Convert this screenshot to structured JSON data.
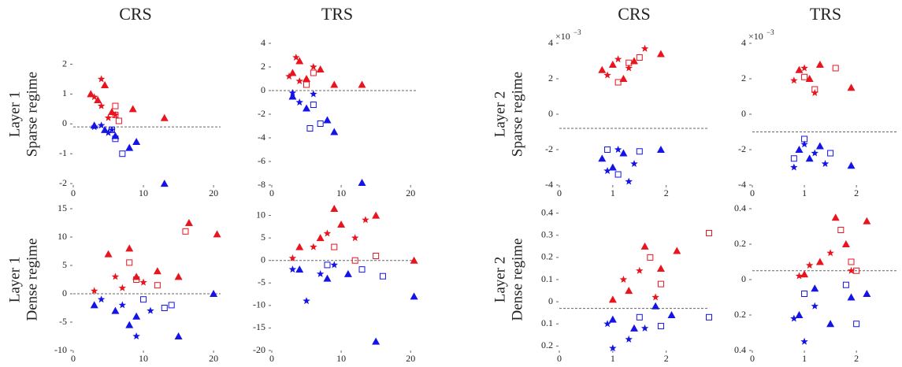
{
  "column_titles": [
    "CRS",
    "TRS",
    "CRS",
    "TRS"
  ],
  "row_labels": [
    [
      "Layer 1",
      "Sparse regime"
    ],
    [
      "Layer 1",
      "Dense regime"
    ],
    [
      "Layer 2",
      "Sparse regime"
    ],
    [
      "Layer 2",
      "Dense regime"
    ]
  ],
  "chart_data": [
    {
      "type": "scatter",
      "xlim": [
        0,
        21
      ],
      "xticks": [
        0,
        10,
        20
      ],
      "ylim": [
        -2.05,
        2.7
      ],
      "yticks": [
        2,
        1,
        0,
        -1,
        -2
      ],
      "threshold": -0.1,
      "series": [
        {
          "color": "#e8141e",
          "marker": "triangle",
          "x": [
            2.5,
            3.5,
            4.5,
            5.5,
            8.5,
            13
          ],
          "values": [
            1,
            0.8,
            1.3,
            0.4,
            0.5,
            0.2
          ]
        },
        {
          "color": "#e8141e",
          "marker": "star",
          "x": [
            3,
            4,
            4,
            5,
            6
          ],
          "values": [
            0.9,
            1.5,
            0.6,
            0.2,
            0.3
          ]
        },
        {
          "color": "#e8141e",
          "marker": "square",
          "x": [
            6,
            6.5,
            6
          ],
          "values": [
            0.3,
            0.1,
            0.6
          ]
        },
        {
          "color": "#1414e6",
          "marker": "triangle",
          "x": [
            3,
            4.5,
            6,
            8,
            9,
            13
          ],
          "values": [
            -0.05,
            -0.2,
            -0.4,
            -0.8,
            -0.6,
            -2
          ]
        },
        {
          "color": "#1414e6",
          "marker": "star",
          "x": [
            3,
            4,
            5,
            5.5
          ],
          "values": [
            -0.1,
            -0.05,
            -0.3,
            -0.2
          ]
        },
        {
          "color": "#1414e6",
          "marker": "square",
          "x": [
            6,
            7,
            5.5
          ],
          "values": [
            -0.5,
            -1,
            -0.2
          ]
        }
      ]
    },
    {
      "type": "scatter",
      "xlim": [
        0,
        21
      ],
      "xticks": [
        0,
        10,
        20
      ],
      "ylim": [
        -8,
        4
      ],
      "yticks": [
        4,
        2,
        0,
        -2,
        -4,
        -6,
        -8
      ],
      "threshold": 0,
      "series": [
        {
          "color": "#e8141e",
          "marker": "triangle",
          "x": [
            3,
            4,
            5,
            7,
            9,
            13
          ],
          "values": [
            1.5,
            2.5,
            1,
            1.8,
            0.5,
            0.5
          ]
        },
        {
          "color": "#e8141e",
          "marker": "star",
          "x": [
            3.5,
            4,
            6,
            2.5
          ],
          "values": [
            2.8,
            0.8,
            2,
            1.2
          ]
        },
        {
          "color": "#e8141e",
          "marker": "square",
          "x": [
            5,
            6
          ],
          "values": [
            0.5,
            1.5
          ]
        },
        {
          "color": "#1414e6",
          "marker": "triangle",
          "x": [
            3,
            5,
            8,
            9,
            13
          ],
          "values": [
            -0.5,
            -1.5,
            -2.5,
            -3.5,
            -7.8
          ]
        },
        {
          "color": "#1414e6",
          "marker": "star",
          "x": [
            3,
            4,
            6
          ],
          "values": [
            -0.2,
            -1,
            -0.3
          ]
        },
        {
          "color": "#1414e6",
          "marker": "square",
          "x": [
            5.5,
            7,
            6
          ],
          "values": [
            -3.2,
            -2.8,
            -1.2
          ]
        }
      ]
    },
    {
      "type": "scatter",
      "xlim": [
        0,
        2.8
      ],
      "xticks": [
        0,
        1,
        2
      ],
      "ylim": [
        -4,
        4
      ],
      "yticks": [
        4,
        2,
        0,
        -2,
        -4
      ],
      "threshold": -0.8,
      "y_multiplier": "×10",
      "y_multiplier_exp": "−3",
      "series": [
        {
          "color": "#e8141e",
          "marker": "triangle",
          "x": [
            0.8,
            1,
            1.2,
            1.4,
            1.9
          ],
          "values": [
            2.5,
            2.8,
            2,
            3,
            3.4
          ]
        },
        {
          "color": "#e8141e",
          "marker": "star",
          "x": [
            0.9,
            1.1,
            1.3,
            1.6
          ],
          "values": [
            2.2,
            3.1,
            2.6,
            3.7
          ]
        },
        {
          "color": "#e8141e",
          "marker": "square",
          "x": [
            1.1,
            1.5,
            1.3
          ],
          "values": [
            1.8,
            3.2,
            2.9
          ]
        },
        {
          "color": "#1414e6",
          "marker": "triangle",
          "x": [
            0.8,
            1,
            1.2,
            1.9
          ],
          "values": [
            -2.5,
            -3,
            -2.2,
            -2
          ]
        },
        {
          "color": "#1414e6",
          "marker": "star",
          "x": [
            0.9,
            1.1,
            1.3,
            1.4
          ],
          "values": [
            -3.2,
            -2,
            -3.8,
            -2.8
          ]
        },
        {
          "color": "#1414e6",
          "marker": "square",
          "x": [
            0.9,
            1.1,
            1.5
          ],
          "values": [
            -2,
            -3.4,
            -2.1
          ]
        }
      ]
    },
    {
      "type": "scatter",
      "xlim": [
        0,
        2.8
      ],
      "xticks": [
        0,
        1,
        2
      ],
      "ylim": [
        -4,
        4
      ],
      "yticks": [
        4,
        2,
        0,
        -2,
        -4
      ],
      "threshold": -1,
      "y_multiplier": "×10",
      "y_multiplier_exp": "−3",
      "series": [
        {
          "color": "#e8141e",
          "marker": "triangle",
          "x": [
            0.9,
            1.1,
            1.3,
            1.9
          ],
          "values": [
            2.5,
            2,
            2.8,
            1.5
          ]
        },
        {
          "color": "#e8141e",
          "marker": "star",
          "x": [
            0.8,
            1,
            1.2
          ],
          "values": [
            1.9,
            2.6,
            1.2
          ]
        },
        {
          "color": "#e8141e",
          "marker": "square",
          "x": [
            1.2,
            1.6,
            1
          ],
          "values": [
            1.4,
            2.6,
            2.1
          ]
        },
        {
          "color": "#1414e6",
          "marker": "triangle",
          "x": [
            0.9,
            1.1,
            1.3,
            1.9
          ],
          "values": [
            -2,
            -2.5,
            -1.8,
            -2.9
          ]
        },
        {
          "color": "#1414e6",
          "marker": "star",
          "x": [
            0.8,
            1,
            1.2,
            1.4
          ],
          "values": [
            -3,
            -1.7,
            -2.2,
            -2.8
          ]
        },
        {
          "color": "#1414e6",
          "marker": "square",
          "x": [
            1,
            1.5,
            0.8
          ],
          "values": [
            -1.4,
            -2.2,
            -2.5
          ]
        }
      ]
    },
    {
      "type": "scatter",
      "xlim": [
        0,
        21
      ],
      "xticks": [
        0,
        10,
        20
      ],
      "ylim": [
        -10,
        15
      ],
      "yticks": [
        15,
        10,
        5,
        0,
        -5,
        -10
      ],
      "threshold": 0,
      "series": [
        {
          "color": "#e8141e",
          "marker": "triangle",
          "x": [
            5,
            8,
            9,
            12,
            15,
            16.5,
            20.5
          ],
          "values": [
            7,
            8,
            3,
            4,
            3,
            12.5,
            10.5
          ]
        },
        {
          "color": "#e8141e",
          "marker": "star",
          "x": [
            3,
            6,
            7,
            10
          ],
          "values": [
            0.5,
            3,
            1,
            2
          ]
        },
        {
          "color": "#e8141e",
          "marker": "square",
          "x": [
            8,
            9,
            12,
            16
          ],
          "values": [
            5.5,
            2.5,
            1.5,
            11
          ]
        },
        {
          "color": "#1414e6",
          "marker": "triangle",
          "x": [
            3,
            6,
            8,
            9,
            15,
            20
          ],
          "values": [
            -2,
            -3,
            -5.5,
            -4,
            -7.5,
            0
          ]
        },
        {
          "color": "#1414e6",
          "marker": "star",
          "x": [
            4,
            7,
            9,
            11
          ],
          "values": [
            -1,
            -2,
            -7.5,
            -3
          ]
        },
        {
          "color": "#1414e6",
          "marker": "square",
          "x": [
            10,
            13,
            14
          ],
          "values": [
            -1,
            -2.5,
            -2
          ]
        }
      ]
    },
    {
      "type": "scatter",
      "xlim": [
        0,
        21
      ],
      "xticks": [
        0,
        10,
        20
      ],
      "ylim": [
        -20,
        11.5
      ],
      "yticks": [
        10,
        5,
        0,
        -5,
        -10,
        -15,
        -20
      ],
      "threshold": 0,
      "series": [
        {
          "color": "#e8141e",
          "marker": "triangle",
          "x": [
            4,
            7,
            9,
            10,
            15,
            20.5
          ],
          "values": [
            3,
            5,
            11.5,
            8,
            10,
            0
          ]
        },
        {
          "color": "#e8141e",
          "marker": "star",
          "x": [
            3,
            6,
            8,
            12,
            13.5
          ],
          "values": [
            0.5,
            3,
            6,
            5,
            9
          ]
        },
        {
          "color": "#e8141e",
          "marker": "square",
          "x": [
            9,
            12,
            15
          ],
          "values": [
            3,
            0,
            1
          ]
        },
        {
          "color": "#1414e6",
          "marker": "triangle",
          "x": [
            4,
            8,
            11,
            15,
            20.5
          ],
          "values": [
            -2,
            -4,
            -3,
            -18,
            -8
          ]
        },
        {
          "color": "#1414e6",
          "marker": "star",
          "x": [
            3,
            5,
            7,
            9
          ],
          "values": [
            -2,
            -9,
            -3,
            -1
          ]
        },
        {
          "color": "#1414e6",
          "marker": "square",
          "x": [
            8,
            13,
            16
          ],
          "values": [
            -1,
            -2,
            -3.5
          ]
        }
      ]
    },
    {
      "type": "scatter",
      "xlim": [
        0,
        2.8
      ],
      "xticks": [
        0,
        1,
        2
      ],
      "ylim": [
        -0.22,
        0.42
      ],
      "yticks": [
        0.4,
        0.3,
        0.2,
        0.1,
        0,
        {
          "value": -0.1,
          "label": "0.1"
        },
        {
          "value": -0.2,
          "label": "0.2"
        }
      ],
      "threshold": -0.03,
      "series": [
        {
          "color": "#e8141e",
          "marker": "triangle",
          "x": [
            1,
            1.3,
            1.6,
            1.9,
            2.2
          ],
          "values": [
            0.01,
            0.05,
            0.25,
            0.15,
            0.23
          ]
        },
        {
          "color": "#e8141e",
          "marker": "star",
          "x": [
            1.2,
            1.5,
            1.8
          ],
          "values": [
            0.1,
            0.14,
            0.02
          ]
        },
        {
          "color": "#e8141e",
          "marker": "square",
          "x": [
            1.7,
            1.9,
            2.8
          ],
          "values": [
            0.2,
            0.08,
            0.31
          ]
        },
        {
          "color": "#1414e6",
          "marker": "triangle",
          "x": [
            1,
            1.4,
            1.8,
            2.1
          ],
          "values": [
            -0.08,
            -0.12,
            -0.02,
            -0.06
          ]
        },
        {
          "color": "#1414e6",
          "marker": "star",
          "x": [
            0.9,
            1,
            1.3,
            1.6
          ],
          "values": [
            -0.1,
            -0.21,
            -0.17,
            -0.12
          ]
        },
        {
          "color": "#1414e6",
          "marker": "square",
          "x": [
            1.5,
            1.9,
            2.8
          ],
          "values": [
            -0.07,
            -0.11,
            -0.07
          ]
        }
      ]
    },
    {
      "type": "scatter",
      "xlim": [
        0,
        2.8
      ],
      "xticks": [
        0,
        1,
        2
      ],
      "ylim": [
        -0.4,
        0.4
      ],
      "yticks": [
        0.4,
        0.2,
        0,
        {
          "value": -0.2,
          "label": "0.2"
        },
        {
          "value": -0.4,
          "label": "0.4"
        }
      ],
      "threshold": 0.05,
      "series": [
        {
          "color": "#e8141e",
          "marker": "triangle",
          "x": [
            1,
            1.3,
            1.6,
            1.8,
            2.2
          ],
          "values": [
            0.03,
            0.1,
            0.35,
            0.2,
            0.33
          ]
        },
        {
          "color": "#e8141e",
          "marker": "star",
          "x": [
            0.9,
            1.1,
            1.5,
            1.9
          ],
          "values": [
            0.02,
            0.08,
            0.15,
            0.05
          ]
        },
        {
          "color": "#e8141e",
          "marker": "square",
          "x": [
            1.7,
            1.9,
            2
          ],
          "values": [
            0.28,
            0.1,
            0.05
          ]
        },
        {
          "color": "#1414e6",
          "marker": "triangle",
          "x": [
            0.9,
            1.2,
            1.5,
            1.9,
            2.2
          ],
          "values": [
            -0.2,
            -0.05,
            -0.25,
            -0.1,
            -0.08
          ]
        },
        {
          "color": "#1414e6",
          "marker": "star",
          "x": [
            0.8,
            1,
            1.2
          ],
          "values": [
            -0.22,
            -0.35,
            -0.15
          ]
        },
        {
          "color": "#1414e6",
          "marker": "square",
          "x": [
            1,
            1.8,
            2
          ],
          "values": [
            -0.08,
            -0.03,
            -0.25
          ]
        }
      ]
    }
  ]
}
